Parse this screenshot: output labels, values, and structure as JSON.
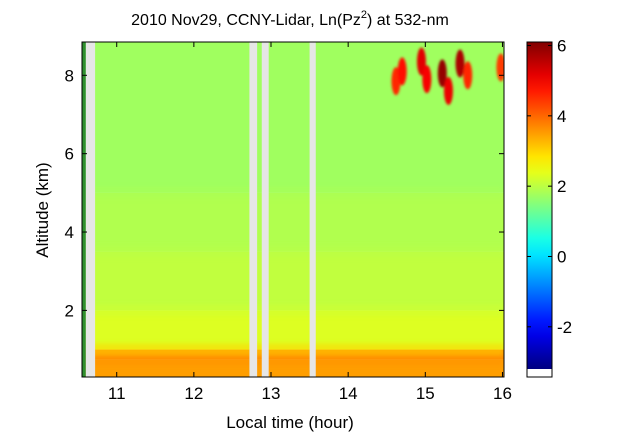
{
  "chart_data": {
    "type": "heatmap",
    "title": {
      "main": "2010 Nov29, CCNY-Lidar, Ln(Pz",
      "sup": "2",
      "tail": ") at 532-nm"
    },
    "xlabel": "Local time (hour)",
    "ylabel": "Altitude (km)",
    "xlim": [
      10.55,
      16.02
    ],
    "ylim": [
      0.3,
      8.85
    ],
    "xticks": [
      11,
      12,
      13,
      14,
      15,
      16
    ],
    "xtick_labels": [
      "11",
      "12",
      "13",
      "14",
      "15",
      "16"
    ],
    "yticks": [
      2,
      4,
      6,
      8
    ],
    "ytick_labels": [
      "2",
      "4",
      "6",
      "8"
    ],
    "colorbar": {
      "range": [
        -3.2,
        6.1
      ],
      "ticks": [
        -2,
        0,
        2,
        4,
        6
      ],
      "tick_labels": [
        "-2",
        "0",
        "2",
        "4",
        "6"
      ],
      "colormap": "jet"
    },
    "field": {
      "bands": [
        {
          "z0": 0.3,
          "z1": 0.75,
          "value": 3.5
        },
        {
          "z0": 0.75,
          "z1": 1.0,
          "value": 3.7
        },
        {
          "z0": 1.0,
          "z1": 2.0,
          "value": 2.3
        },
        {
          "z0": 2.0,
          "z1": 3.5,
          "value": 2.05
        },
        {
          "z0": 3.5,
          "z1": 5.0,
          "value": 1.9
        },
        {
          "z0": 5.0,
          "z1": 8.85,
          "value": 1.75
        }
      ],
      "data_gaps": [
        [
          10.55,
          10.6
        ],
        [
          10.6,
          10.72
        ],
        [
          12.72,
          12.82
        ],
        [
          12.88,
          12.97
        ],
        [
          13.5,
          13.58
        ]
      ],
      "cloud_features": [
        {
          "t": 14.62,
          "z": 7.85,
          "value": 4.6
        },
        {
          "t": 14.7,
          "z": 8.1,
          "value": 4.8
        },
        {
          "t": 14.95,
          "z": 8.35,
          "value": 5.2
        },
        {
          "t": 15.02,
          "z": 7.9,
          "value": 5.0
        },
        {
          "t": 15.22,
          "z": 8.05,
          "value": 5.9
        },
        {
          "t": 15.3,
          "z": 7.6,
          "value": 5.1
        },
        {
          "t": 15.45,
          "z": 8.3,
          "value": 5.7
        },
        {
          "t": 15.55,
          "z": 8.0,
          "value": 4.6
        },
        {
          "t": 15.98,
          "z": 8.2,
          "value": 4.4
        }
      ]
    }
  }
}
